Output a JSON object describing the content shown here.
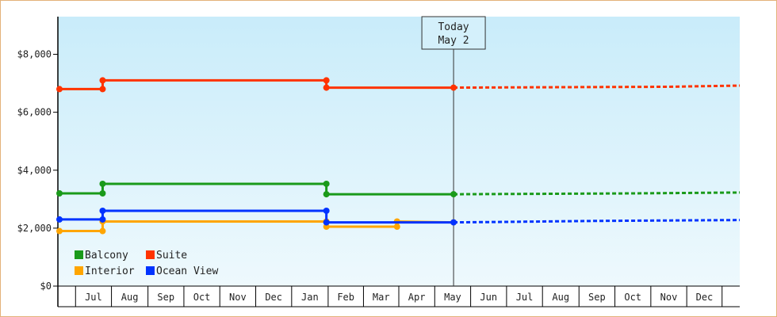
{
  "chart_data": {
    "type": "line",
    "title": "",
    "xlabel": "",
    "ylabel": "",
    "ylim": [
      0,
      9300
    ],
    "yticks": [
      0,
      2000,
      4000,
      6000,
      8000
    ],
    "ytick_labels": [
      "$0",
      "$2,000",
      "$4,000",
      "$6,000",
      "$8,000"
    ],
    "x_start": "2023-06-01",
    "x_end": "2024-12-31",
    "xtick_labels": [
      "Jul",
      "Aug",
      "Sep",
      "Oct",
      "Nov",
      "Dec",
      "Jan",
      "Feb",
      "Mar",
      "Apr",
      "May",
      "Jun",
      "Jul",
      "Aug",
      "Sep",
      "Oct",
      "Nov",
      "Dec"
    ],
    "xtick_dates": [
      "2023-07-01",
      "2023-08-01",
      "2023-09-01",
      "2023-10-01",
      "2023-11-01",
      "2023-12-01",
      "2024-01-01",
      "2024-02-01",
      "2024-03-01",
      "2024-04-01",
      "2024-05-01",
      "2024-06-01",
      "2024-07-01",
      "2024-08-01",
      "2024-09-01",
      "2024-10-01",
      "2024-11-01",
      "2024-12-01"
    ],
    "today": {
      "line1": "Today",
      "line2": "May 2",
      "date": "2024-05-02"
    },
    "grid": false,
    "legend_position": "bottom-left",
    "series": [
      {
        "name": "Balcony",
        "color": "#1a9a1a",
        "history": [
          [
            "2023-06-01",
            3200
          ],
          [
            "2023-07-09",
            3200
          ],
          [
            "2023-07-09",
            3530
          ],
          [
            "2024-01-15",
            3530
          ],
          [
            "2024-01-15",
            3170
          ],
          [
            "2024-05-02",
            3170
          ]
        ],
        "forecast": [
          [
            "2024-05-02",
            3170
          ],
          [
            "2024-10-01",
            3200
          ],
          [
            "2024-12-31",
            3230
          ]
        ]
      },
      {
        "name": "Suite",
        "color": "#ff3300",
        "history": [
          [
            "2023-06-01",
            6800
          ],
          [
            "2023-07-09",
            6800
          ],
          [
            "2023-07-09",
            7100
          ],
          [
            "2024-01-15",
            7100
          ],
          [
            "2024-01-15",
            6850
          ],
          [
            "2024-05-02",
            6850
          ]
        ],
        "forecast": [
          [
            "2024-05-02",
            6850
          ],
          [
            "2024-10-31",
            6880
          ],
          [
            "2024-12-31",
            6920
          ]
        ]
      },
      {
        "name": "Interior",
        "color": "#ffa500",
        "history": [
          [
            "2023-06-01",
            1900
          ],
          [
            "2023-07-09",
            1900
          ],
          [
            "2023-07-09",
            2230
          ],
          [
            "2024-01-15",
            2230
          ],
          [
            "2024-01-15",
            2050
          ],
          [
            "2024-03-15",
            2050
          ],
          [
            "2024-03-15",
            2230
          ],
          [
            "2024-05-02",
            2200
          ]
        ],
        "forecast": []
      },
      {
        "name": "Ocean View",
        "color": "#0033ff",
        "history": [
          [
            "2023-06-01",
            2300
          ],
          [
            "2023-07-09",
            2300
          ],
          [
            "2023-07-09",
            2600
          ],
          [
            "2024-01-15",
            2600
          ],
          [
            "2024-01-15",
            2200
          ],
          [
            "2024-05-02",
            2200
          ]
        ],
        "forecast": [
          [
            "2024-05-02",
            2200
          ],
          [
            "2024-06-01",
            2210
          ],
          [
            "2024-09-01",
            2250
          ],
          [
            "2024-12-31",
            2280
          ]
        ]
      }
    ],
    "legend_order": [
      "Balcony",
      "Suite",
      "Interior",
      "Ocean View"
    ]
  }
}
